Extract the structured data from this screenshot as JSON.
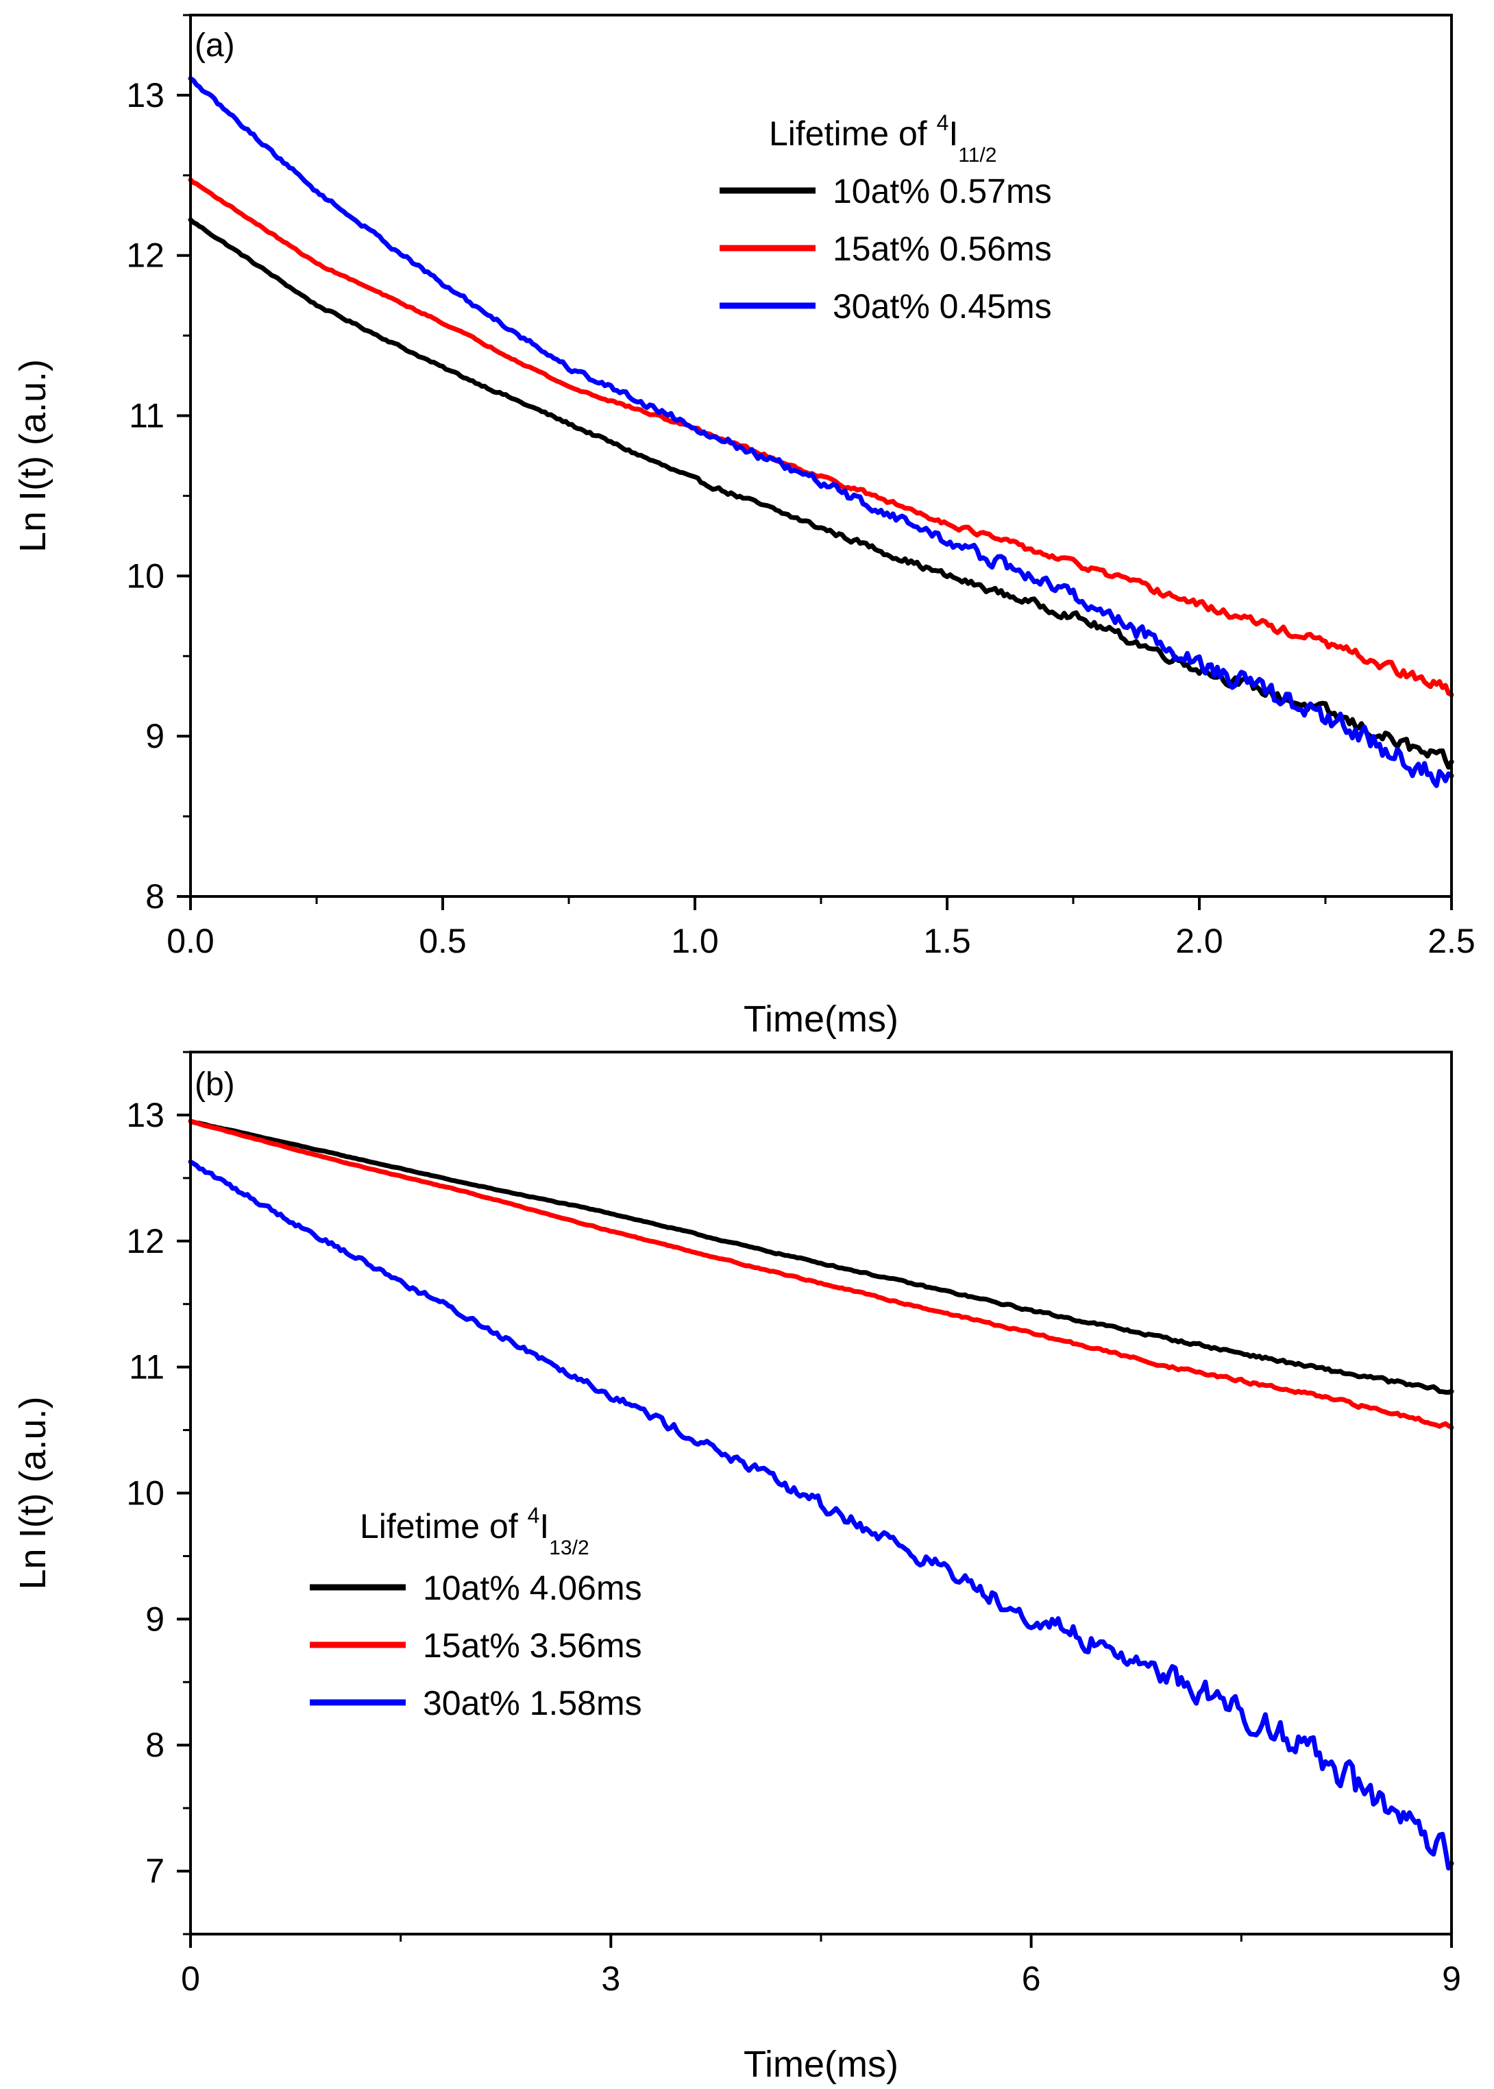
{
  "chart_data": [
    {
      "type": "line",
      "panel_label": "(a)",
      "xlabel": "Time(ms)",
      "ylabel": "Ln I(t) (a.u.)",
      "xlim": [
        0,
        2.5
      ],
      "ylim": [
        8,
        13.5
      ],
      "xticks": [
        "0.0",
        "0.5",
        "1.0",
        "1.5",
        "2.0",
        "2.5"
      ],
      "yticks": [
        "8",
        "9",
        "10",
        "11",
        "12",
        "13"
      ],
      "legend": {
        "title_main": "Lifetime of ",
        "title_sup": "4",
        "title_I": "I",
        "title_sub": "11/2",
        "position": "top-right"
      },
      "series": [
        {
          "name": "10at% 0.57ms",
          "color": "#000000",
          "x": [
            0,
            0.25,
            0.5,
            0.75,
            1.0,
            1.25,
            1.5,
            1.75,
            2.0,
            2.25,
            2.5
          ],
          "values": [
            12.22,
            11.69,
            11.3,
            10.95,
            10.6,
            10.3,
            10.0,
            9.75,
            9.42,
            9.15,
            8.82
          ],
          "noise": 0.04
        },
        {
          "name": "15at% 0.56ms",
          "color": "#ff0000",
          "x": [
            0,
            0.25,
            0.5,
            0.75,
            1.0,
            1.25,
            1.5,
            1.75,
            2.0,
            2.25,
            2.5
          ],
          "values": [
            12.47,
            11.95,
            11.58,
            11.18,
            10.92,
            10.62,
            10.33,
            10.08,
            9.82,
            9.58,
            9.28
          ],
          "noise": 0.03
        },
        {
          "name": "30at% 0.45ms",
          "color": "#0000ff",
          "x": [
            0,
            0.25,
            0.5,
            0.75,
            1.0,
            1.25,
            1.5,
            1.75,
            2.0,
            2.25,
            2.5
          ],
          "values": [
            13.1,
            12.4,
            11.82,
            11.3,
            10.93,
            10.58,
            10.22,
            9.88,
            9.45,
            9.12,
            8.7
          ],
          "noise": 0.07
        }
      ]
    },
    {
      "type": "line",
      "panel_label": "(b)",
      "xlabel": "Time(ms)",
      "ylabel": "Ln I(t) (a.u.)",
      "xlim": [
        0,
        9
      ],
      "ylim": [
        6.5,
        13.5
      ],
      "xticks": [
        "0",
        "3",
        "6",
        "9"
      ],
      "yticks": [
        "7",
        "8",
        "9",
        "10",
        "11",
        "12",
        "13"
      ],
      "legend": {
        "title_main": "Lifetime of ",
        "title_sup": "4",
        "title_I": "I",
        "title_sub": "13/2",
        "position": "middle-left"
      },
      "series": [
        {
          "name": "10at% 4.06ms",
          "color": "#000000",
          "x": [
            0,
            1,
            2,
            3,
            4,
            5,
            6,
            7,
            8,
            9
          ],
          "values": [
            12.95,
            12.7,
            12.45,
            12.22,
            11.95,
            11.7,
            11.45,
            11.22,
            11.0,
            10.8
          ],
          "noise": 0.015
        },
        {
          "name": "15at% 3.56ms",
          "color": "#ff0000",
          "x": [
            0,
            1,
            2,
            3,
            4,
            5,
            6,
            7,
            8,
            9
          ],
          "values": [
            12.95,
            12.65,
            12.38,
            12.08,
            11.8,
            11.53,
            11.27,
            11.0,
            10.78,
            10.53
          ],
          "noise": 0.015
        },
        {
          "name": "30at% 1.58ms",
          "color": "#0000ff",
          "x": [
            0,
            1,
            2,
            3,
            4,
            5,
            6,
            7,
            8,
            9
          ],
          "values": [
            12.62,
            11.98,
            11.38,
            10.78,
            10.2,
            9.62,
            9.02,
            8.55,
            7.98,
            7.05
          ],
          "noise": 0.12
        }
      ]
    }
  ]
}
